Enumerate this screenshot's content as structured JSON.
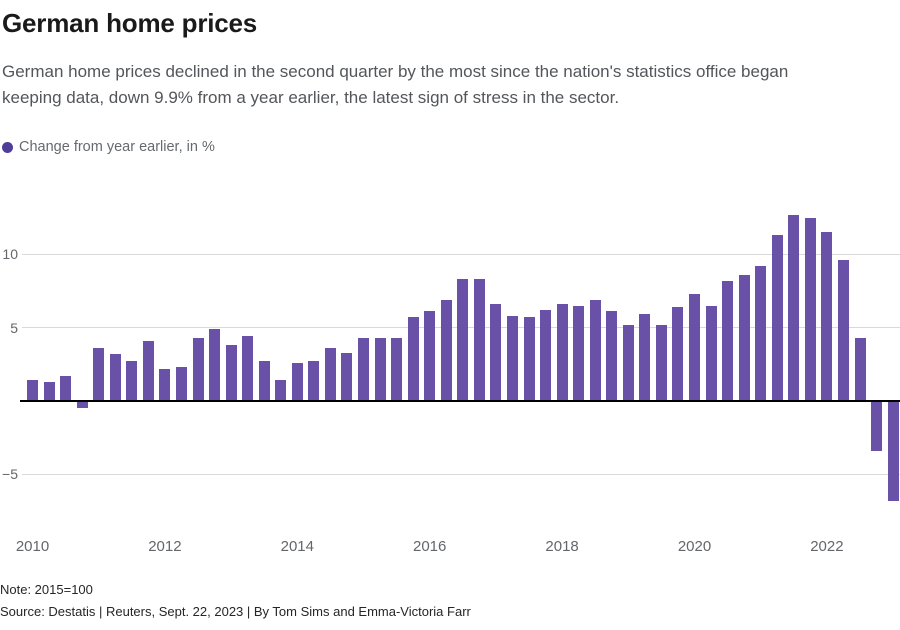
{
  "header": {
    "title": "German home prices",
    "subtitle_line1": "German home prices declined in the second quarter by the most since the nation's statistics office began",
    "subtitle_line2": "keeping data, down 9.9% from a year earlier, the latest sign of stress in the sector."
  },
  "legend": {
    "label": "Change from year earlier, in %"
  },
  "chart_data": {
    "type": "bar",
    "title": "German home prices",
    "series_label": "Change from year earlier, in %",
    "x": [
      "2010 Q1",
      "2010 Q2",
      "2010 Q3",
      "2010 Q4",
      "2011 Q1",
      "2011 Q2",
      "2011 Q3",
      "2011 Q4",
      "2012 Q1",
      "2012 Q2",
      "2012 Q3",
      "2012 Q4",
      "2013 Q1",
      "2013 Q2",
      "2013 Q3",
      "2013 Q4",
      "2014 Q1",
      "2014 Q2",
      "2014 Q3",
      "2014 Q4",
      "2015 Q1",
      "2015 Q2",
      "2015 Q3",
      "2015 Q4",
      "2016 Q1",
      "2016 Q2",
      "2016 Q3",
      "2016 Q4",
      "2017 Q1",
      "2017 Q2",
      "2017 Q3",
      "2017 Q4",
      "2018 Q1",
      "2018 Q2",
      "2018 Q3",
      "2018 Q4",
      "2019 Q1",
      "2019 Q2",
      "2019 Q3",
      "2019 Q4",
      "2020 Q1",
      "2020 Q2",
      "2020 Q3",
      "2020 Q4",
      "2021 Q1",
      "2021 Q2",
      "2021 Q3",
      "2021 Q4",
      "2022 Q1",
      "2022 Q2",
      "2022 Q3",
      "2022 Q4",
      "2023 Q1"
    ],
    "values": [
      1.4,
      1.3,
      1.7,
      -0.5,
      3.6,
      3.2,
      2.7,
      4.1,
      2.2,
      2.3,
      4.3,
      4.9,
      3.8,
      4.4,
      2.7,
      1.4,
      2.6,
      2.7,
      3.6,
      3.3,
      4.3,
      4.3,
      4.3,
      5.7,
      6.1,
      6.9,
      8.3,
      8.3,
      6.6,
      5.8,
      5.7,
      6.2,
      6.6,
      6.5,
      6.9,
      6.1,
      5.2,
      5.9,
      5.2,
      6.4,
      7.3,
      6.5,
      8.2,
      8.6,
      9.2,
      11.3,
      12.7,
      12.5,
      11.5,
      9.6,
      4.3,
      -3.4,
      -6.8
    ],
    "yticks": [
      10,
      5,
      -5
    ],
    "ytick_labels": [
      "10",
      "5",
      "−5"
    ],
    "xtick_years": [
      2010,
      2012,
      2014,
      2016,
      2018,
      2020,
      2022
    ],
    "xtick_labels": [
      "2010",
      "2012",
      "2014",
      "2016",
      "2018",
      "2020",
      "2022"
    ],
    "ylim": [
      -7,
      14
    ],
    "grid": true,
    "legend_position": "top-left"
  },
  "footer": {
    "note": "Note: 2015=100",
    "source": "Source: Destatis | Reuters, Sept. 22, 2023 | By Tom Sims and Emma-Victoria Farr"
  },
  "colors": {
    "bar": "#6A51A8",
    "legend_dot": "#4F3E99",
    "grid": "#D9D9D9",
    "zero_line": "#000000",
    "axis_text": "#63666A",
    "title_text": "#1A1A1A",
    "subtitle_text": "#53565A",
    "footer_text": "#262626"
  }
}
